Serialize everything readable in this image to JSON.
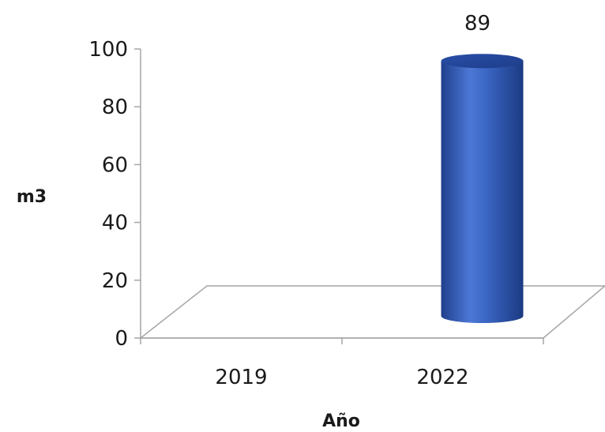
{
  "chart_data": {
    "type": "bar",
    "style": "3d-cylinder",
    "categories": [
      "2019",
      "2022"
    ],
    "values": [
      0,
      89
    ],
    "data_labels": [
      "",
      "89"
    ],
    "xlabel": "Año",
    "ylabel": "m3",
    "ylim": [
      0,
      100
    ],
    "yticks": [
      "0",
      "20",
      "40",
      "60",
      "80",
      "100"
    ],
    "grid": false,
    "legend": "none",
    "bar_color": "#3a62b8"
  }
}
